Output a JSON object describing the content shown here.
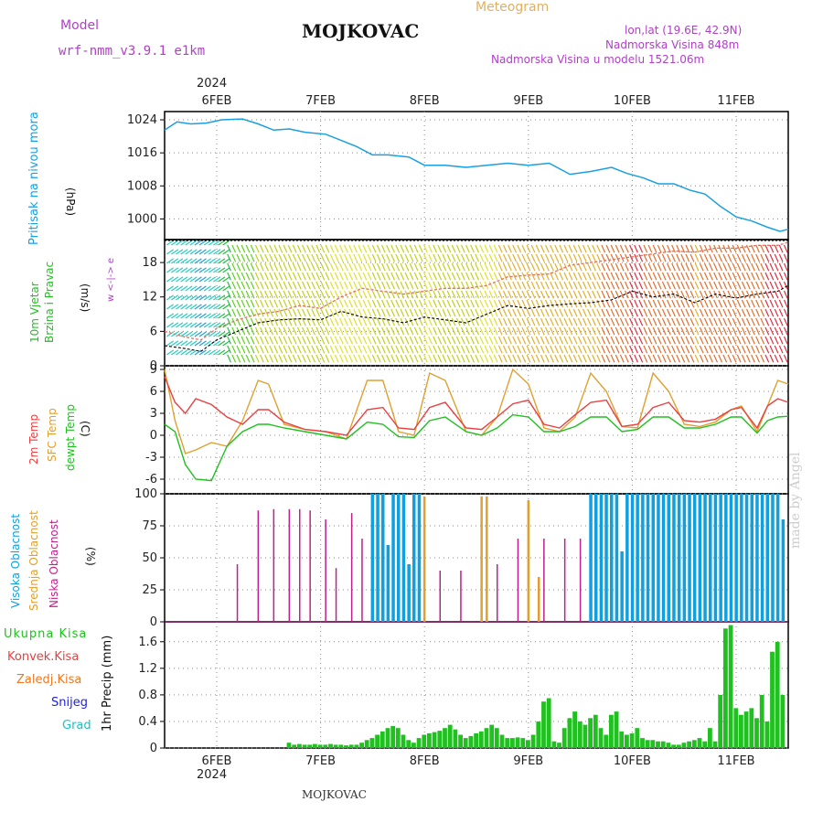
{
  "header": {
    "model_label": "Model",
    "model_name": "wrf-nmm_v3.9.1 e1km",
    "station": "MOJKOVAC",
    "meteogram": "Meteogram",
    "lonlat": "lon,lat (19.6E, 42.9N)",
    "elev": "Nadmorska Visina 848m",
    "elev_model": "Nadmorska Visina u modelu 1521.06m",
    "footer_station": "MOJKOVAC",
    "credit": "made by Angel"
  },
  "colors": {
    "pressure": "#1aa0e0",
    "temp2m": "#e84040",
    "sfc": "#e0a030",
    "dew": "#20c020",
    "high": "#10a0e0",
    "mid": "#e0a030",
    "low": "#c0208c",
    "total": "#20c020",
    "conv": "#e84040",
    "frz": "#f07820",
    "snow": "#2020e0",
    "hail": "#20c0c0",
    "purple": "#b040c8"
  },
  "chart_data": [
    {
      "type": "line",
      "panel": "pressure",
      "ylabel_name": "Pritisak na nivou mora",
      "ylabel_unit": "(hPa)",
      "yticks": [
        "1000",
        "1008",
        "1016",
        "1024"
      ],
      "ylim": [
        995,
        1026
      ],
      "xlim": [
        0,
        6
      ],
      "xticks": [
        "6FEB",
        "7FEB",
        "8FEB",
        "9FEB",
        "10FEB",
        "11FEB"
      ],
      "year": "2024",
      "grid": true,
      "series": [
        {
          "values_x": [
            0,
            0.12,
            0.25,
            0.4,
            0.55,
            0.75,
            0.9,
            1.05,
            1.2,
            1.35,
            1.55,
            1.7,
            1.85,
            2.0,
            2.15,
            2.35,
            2.5,
            2.7,
            2.9,
            3.1,
            3.3,
            3.5,
            3.7,
            3.9,
            4.1,
            4.3,
            4.45,
            4.6,
            4.75,
            4.9,
            5.05,
            5.2,
            5.35,
            5.5,
            5.65,
            5.8,
            5.92,
            6.0
          ],
          "values": [
            1021.5,
            1023.5,
            1023.0,
            1023.2,
            1024.0,
            1024.2,
            1023.0,
            1021.5,
            1021.8,
            1021.0,
            1020.5,
            1019.0,
            1017.5,
            1015.5,
            1015.5,
            1015.0,
            1013.0,
            1013.0,
            1012.5,
            1013.0,
            1013.5,
            1013.0,
            1013.5,
            1010.8,
            1011.5,
            1012.5,
            1011.0,
            1010.0,
            1008.5,
            1008.5,
            1007.0,
            1006.0,
            1003.0,
            1000.5,
            999.5,
            998.0,
            997.0,
            997.5
          ]
        }
      ]
    },
    {
      "type": "line",
      "panel": "wind",
      "ylabel_name": "10m Vjetar Brzina i Pravac",
      "ylabel_unit": "(m/s)",
      "compass": "w  <-|->  e",
      "yticks": [
        "0",
        "6",
        "12",
        "18"
      ],
      "ylim": [
        0,
        22
      ],
      "xlim": [
        0,
        6
      ],
      "series": [
        {
          "name": "speed",
          "values_x": [
            0,
            0.2,
            0.35,
            0.5,
            0.7,
            0.9,
            1.1,
            1.3,
            1.5,
            1.7,
            1.9,
            2.1,
            2.3,
            2.5,
            2.7,
            2.9,
            3.1,
            3.3,
            3.5,
            3.7,
            3.9,
            4.1,
            4.3,
            4.5,
            4.7,
            4.9,
            5.1,
            5.3,
            5.5,
            5.7,
            5.9,
            6.0
          ],
          "values": [
            3.5,
            3.0,
            2.5,
            4.5,
            6.0,
            7.5,
            8.0,
            8.2,
            8.0,
            9.5,
            8.5,
            8.2,
            7.5,
            8.5,
            8.0,
            7.5,
            9.0,
            10.5,
            10.0,
            10.5,
            10.8,
            11.0,
            11.5,
            13.0,
            12.0,
            12.5,
            11.0,
            12.5,
            11.8,
            12.5,
            13.0,
            14.0
          ]
        },
        {
          "name": "gust",
          "values_x": [
            0,
            0.2,
            0.35,
            0.5,
            0.7,
            0.9,
            1.1,
            1.3,
            1.5,
            1.7,
            1.9,
            2.1,
            2.3,
            2.5,
            2.7,
            2.9,
            3.1,
            3.3,
            3.5,
            3.7,
            3.9,
            4.1,
            4.3,
            4.5,
            4.7,
            4.9,
            5.1,
            5.3,
            5.5,
            5.7,
            5.9,
            6.0
          ],
          "values": [
            6.0,
            5.0,
            4.5,
            6.5,
            8.0,
            9.0,
            9.5,
            10.5,
            10.0,
            12.0,
            13.5,
            13.0,
            12.5,
            13.0,
            13.5,
            13.5,
            14.0,
            15.5,
            15.8,
            16.0,
            17.5,
            18.0,
            18.5,
            19.0,
            19.5,
            20.0,
            19.8,
            20.5,
            20.5,
            21.0,
            21.0,
            21.5
          ]
        }
      ]
    },
    {
      "type": "line",
      "panel": "temperature",
      "ylabel_t2": "2m Temp",
      "ylabel_sfc": "SFC Temp",
      "ylabel_dew": "dewpt Temp",
      "ylabel_unit": "(C)",
      "yticks": [
        "-6",
        "-3",
        "0",
        "3",
        "6",
        "9"
      ],
      "ylim": [
        -8,
        9.5
      ],
      "xlim": [
        0,
        6
      ],
      "series": [
        {
          "name": "2m Temp",
          "values_x": [
            0,
            0.1,
            0.2,
            0.3,
            0.45,
            0.6,
            0.75,
            0.9,
            1.0,
            1.15,
            1.35,
            1.55,
            1.75,
            1.95,
            2.1,
            2.25,
            2.4,
            2.55,
            2.7,
            2.9,
            3.05,
            3.2,
            3.35,
            3.5,
            3.65,
            3.8,
            3.95,
            4.1,
            4.25,
            4.4,
            4.55,
            4.7,
            4.85,
            5.0,
            5.15,
            5.3,
            5.45,
            5.55,
            5.7,
            5.8,
            5.9,
            6.0
          ],
          "values": [
            8.0,
            4.5,
            3.0,
            5.0,
            4.2,
            2.5,
            1.5,
            3.5,
            3.5,
            1.8,
            0.8,
            0.5,
            0.0,
            3.5,
            3.8,
            1.0,
            0.8,
            3.8,
            4.5,
            1.0,
            0.8,
            2.5,
            4.3,
            4.8,
            1.5,
            1.0,
            2.8,
            4.5,
            4.8,
            1.2,
            1.5,
            3.8,
            4.5,
            2.0,
            1.8,
            2.2,
            3.5,
            3.8,
            1.0,
            4.0,
            5.0,
            4.5
          ]
        },
        {
          "name": "SFC Temp",
          "values_x": [
            0,
            0.1,
            0.2,
            0.3,
            0.45,
            0.6,
            0.75,
            0.9,
            1.0,
            1.15,
            1.35,
            1.55,
            1.75,
            1.95,
            2.1,
            2.25,
            2.4,
            2.55,
            2.7,
            2.9,
            3.05,
            3.2,
            3.35,
            3.5,
            3.65,
            3.8,
            3.95,
            4.1,
            4.25,
            4.4,
            4.55,
            4.7,
            4.85,
            5.0,
            5.15,
            5.3,
            5.45,
            5.55,
            5.7,
            5.8,
            5.9,
            6.0
          ],
          "values": [
            9.0,
            2.0,
            -2.5,
            -2.0,
            -1.0,
            -1.5,
            2.0,
            7.5,
            7.0,
            1.5,
            0.8,
            0.5,
            -0.5,
            7.5,
            7.5,
            0.5,
            0.0,
            8.5,
            7.5,
            0.5,
            0.0,
            2.5,
            9.0,
            7.0,
            1.0,
            0.5,
            2.5,
            8.5,
            6.0,
            1.2,
            1.0,
            8.5,
            6.0,
            1.5,
            1.2,
            1.8,
            3.5,
            4.0,
            0.5,
            4.0,
            7.5,
            7.0
          ]
        },
        {
          "name": "dewpt Temp",
          "values_x": [
            0,
            0.1,
            0.2,
            0.3,
            0.45,
            0.6,
            0.75,
            0.9,
            1.0,
            1.15,
            1.35,
            1.55,
            1.75,
            1.95,
            2.1,
            2.25,
            2.4,
            2.55,
            2.7,
            2.9,
            3.05,
            3.2,
            3.35,
            3.5,
            3.65,
            3.8,
            3.95,
            4.1,
            4.25,
            4.4,
            4.55,
            4.7,
            4.85,
            5.0,
            5.15,
            5.3,
            5.45,
            5.55,
            5.7,
            5.8,
            5.9,
            6.0
          ],
          "values": [
            1.5,
            0.5,
            -4.0,
            -6.0,
            -6.2,
            -1.5,
            0.5,
            1.5,
            1.5,
            1.0,
            0.5,
            0.0,
            -0.5,
            1.8,
            1.5,
            -0.2,
            -0.3,
            2.0,
            2.5,
            0.5,
            0.0,
            1.0,
            2.8,
            2.5,
            0.5,
            0.5,
            1.2,
            2.5,
            2.5,
            0.5,
            0.8,
            2.5,
            2.5,
            1.0,
            1.0,
            1.5,
            2.5,
            2.5,
            0.3,
            2.0,
            2.5,
            2.6
          ]
        }
      ]
    },
    {
      "type": "bar",
      "panel": "clouds",
      "ylabel_high": "Visoka Oblacnost",
      "ylabel_mid": "Srednja Oblacnost",
      "ylabel_low": "Niska Oblacnost",
      "ylabel_unit": "(%)",
      "yticks": [
        "0",
        "25",
        "50",
        "75",
        "100"
      ],
      "ylim": [
        0,
        100
      ],
      "xlim": [
        0,
        6
      ],
      "series": [
        {
          "name": "Niska Oblacnost",
          "values_x": [
            0.7,
            0.9,
            1.05,
            1.2,
            1.3,
            1.4,
            1.55,
            1.65,
            1.8,
            1.9,
            2.0,
            2.15,
            2.3,
            2.4,
            2.5,
            2.65,
            2.85,
            3.05,
            3.2,
            3.4,
            3.5,
            3.65,
            3.85,
            4.0,
            4.15,
            4.3,
            4.6,
            4.9,
            5.1
          ],
          "values": [
            45,
            87,
            88,
            88,
            88,
            87,
            80,
            42,
            85,
            65,
            70,
            60,
            60,
            45,
            50,
            40,
            40,
            40,
            45,
            65,
            65,
            65,
            65,
            65,
            65,
            60,
            35,
            30,
            25
          ]
        },
        {
          "name": "Srednja Oblacnost",
          "values_x": [
            2.0,
            2.1,
            2.2,
            2.3,
            2.4,
            2.5,
            3.05,
            3.1,
            3.5,
            3.6,
            4.2,
            4.4,
            4.7,
            4.95,
            5.2,
            5.45
          ],
          "values": [
            95,
            98,
            90,
            95,
            92,
            98,
            98,
            98,
            95,
            35,
            40,
            30,
            45,
            30,
            50,
            35
          ]
        },
        {
          "name": "Visoka Oblacnost",
          "values_x": [
            2.0,
            2.05,
            2.1,
            2.15,
            2.2,
            2.25,
            2.3,
            2.35,
            2.4,
            2.45,
            4.1,
            4.15,
            4.2,
            4.25,
            4.3,
            4.35,
            4.4,
            4.45,
            4.5,
            4.55,
            4.6,
            4.65,
            4.7,
            4.75,
            4.8,
            4.85,
            4.9,
            4.95,
            5.0,
            5.05,
            5.1,
            5.15,
            5.2,
            5.25,
            5.3,
            5.35,
            5.4,
            5.45,
            5.5,
            5.55,
            5.6,
            5.65,
            5.7,
            5.75,
            5.8,
            5.85,
            5.9,
            5.95
          ],
          "values": [
            100,
            100,
            100,
            60,
            100,
            100,
            100,
            45,
            100,
            100,
            100,
            100,
            100,
            100,
            100,
            100,
            55,
            100,
            100,
            100,
            100,
            100,
            100,
            100,
            100,
            100,
            100,
            100,
            100,
            100,
            100,
            100,
            100,
            100,
            100,
            100,
            100,
            100,
            100,
            100,
            100,
            100,
            100,
            100,
            100,
            100,
            100,
            80
          ]
        }
      ]
    },
    {
      "type": "bar",
      "panel": "precip",
      "ylabel_total": "Ukupna Kisa",
      "ylabel_conv": "Konvek.Kisa",
      "ylabel_frz": "Zaledj.Kisa",
      "ylabel_snow": "Snijeg",
      "ylabel_hail": "Grad",
      "ylabel_unit": "1hr Precip (mm)",
      "yticks": [
        "0",
        "0.4",
        "0.8",
        "1.2",
        "1.6"
      ],
      "ylim": [
        0,
        1.9
      ],
      "xlim": [
        0,
        6
      ],
      "series": [
        {
          "name": "Ukupna Kisa",
          "values_x": [
            1.2,
            1.25,
            1.3,
            1.35,
            1.4,
            1.45,
            1.5,
            1.55,
            1.6,
            1.65,
            1.7,
            1.75,
            1.8,
            1.85,
            1.9,
            1.95,
            2.0,
            2.05,
            2.1,
            2.15,
            2.2,
            2.25,
            2.3,
            2.35,
            2.4,
            2.45,
            2.5,
            2.55,
            2.6,
            2.65,
            2.7,
            2.75,
            2.8,
            2.85,
            2.9,
            2.95,
            3.0,
            3.05,
            3.1,
            3.15,
            3.2,
            3.25,
            3.3,
            3.35,
            3.4,
            3.45,
            3.5,
            3.55,
            3.6,
            3.65,
            3.7,
            3.75,
            3.8,
            3.85,
            3.9,
            3.95,
            4.0,
            4.05,
            4.1,
            4.15,
            4.2,
            4.25,
            4.3,
            4.35,
            4.4,
            4.45,
            4.5,
            4.55,
            4.6,
            4.65,
            4.7,
            4.75,
            4.8,
            4.85,
            4.9,
            4.95,
            5.0,
            5.05,
            5.1,
            5.15,
            5.2,
            5.25,
            5.3,
            5.35,
            5.4,
            5.45,
            5.5,
            5.55,
            5.6,
            5.65,
            5.7,
            5.75,
            5.8,
            5.85,
            5.9,
            5.95
          ],
          "values": [
            0.08,
            0.05,
            0.06,
            0.05,
            0.05,
            0.06,
            0.05,
            0.05,
            0.06,
            0.05,
            0.05,
            0.04,
            0.05,
            0.05,
            0.08,
            0.12,
            0.15,
            0.2,
            0.25,
            0.3,
            0.33,
            0.3,
            0.2,
            0.12,
            0.08,
            0.15,
            0.2,
            0.22,
            0.24,
            0.26,
            0.3,
            0.35,
            0.28,
            0.2,
            0.15,
            0.18,
            0.22,
            0.25,
            0.3,
            0.35,
            0.3,
            0.2,
            0.15,
            0.15,
            0.16,
            0.15,
            0.12,
            0.2,
            0.4,
            0.7,
            0.75,
            0.1,
            0.08,
            0.3,
            0.45,
            0.55,
            0.4,
            0.35,
            0.45,
            0.5,
            0.3,
            0.2,
            0.5,
            0.55,
            0.25,
            0.2,
            0.22,
            0.3,
            0.15,
            0.12,
            0.12,
            0.1,
            0.1,
            0.08,
            0.05,
            0.05,
            0.08,
            0.1,
            0.12,
            0.15,
            0.1,
            0.3,
            0.1,
            0.8,
            1.8,
            1.85,
            0.6,
            0.5,
            0.55,
            0.6,
            0.45,
            0.8,
            0.4,
            1.45,
            1.6,
            0.8
          ]
        }
      ]
    }
  ]
}
